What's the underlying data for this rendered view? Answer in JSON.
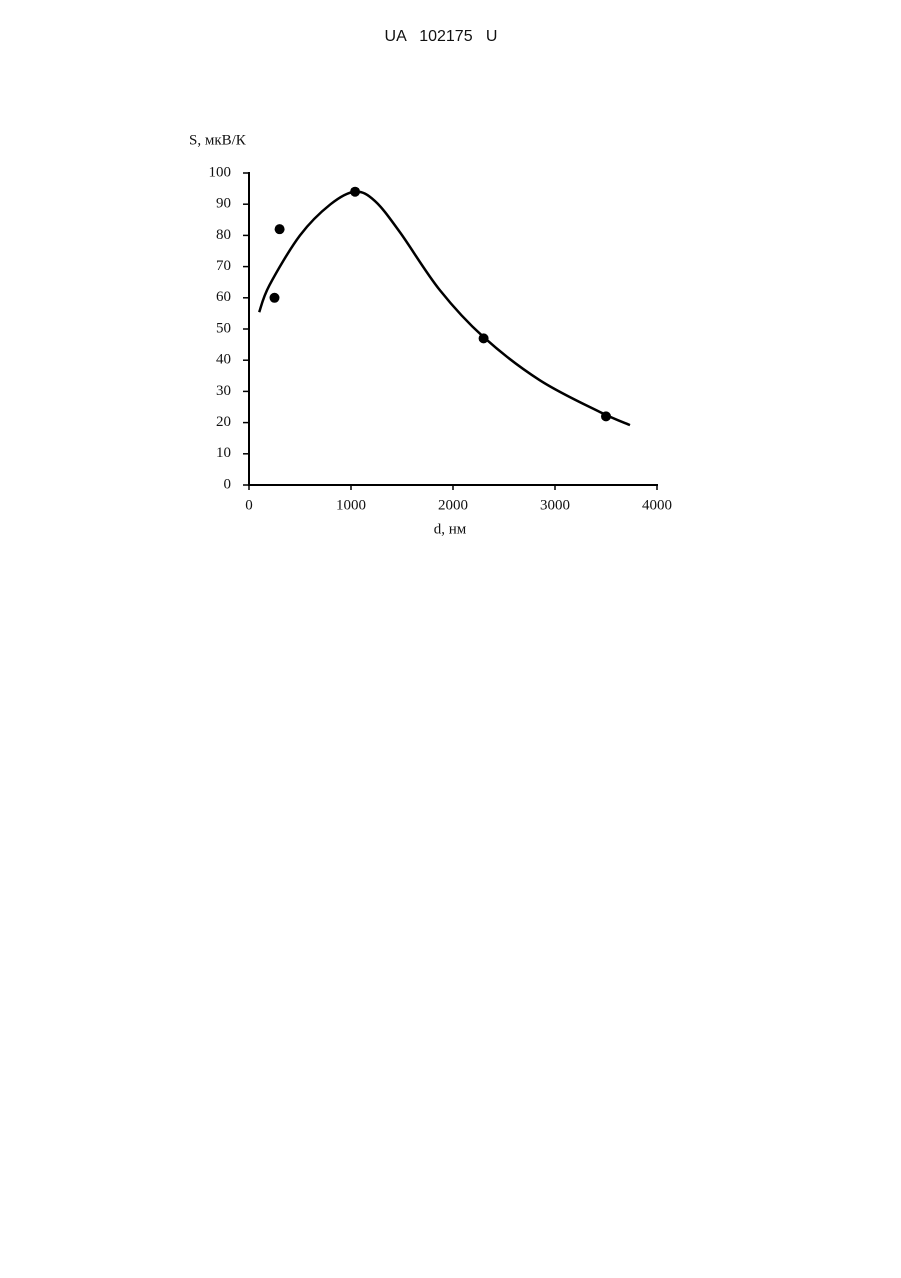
{
  "header": {
    "title": "UA   102175   U"
  },
  "chart_data": {
    "type": "scatter",
    "ylabel": "S, мкВ/К",
    "xlabel": "d, нм",
    "xlim": [
      0,
      4000
    ],
    "xticks": [
      0,
      1000,
      2000,
      3000,
      4000
    ],
    "ylim": [
      0,
      100
    ],
    "yticks": [
      0,
      10,
      20,
      30,
      40,
      50,
      60,
      70,
      80,
      90,
      100
    ],
    "series": [
      {
        "mode": "markers",
        "color": "#000000",
        "x": [
          250,
          300,
          1040,
          2300,
          3500
        ],
        "values": [
          60,
          82,
          94,
          47,
          22
        ]
      },
      {
        "mode": "line",
        "color": "#000000",
        "x": [
          100,
          200,
          500,
          800,
          1040,
          1235,
          1480,
          1870,
          2300,
          2850,
          3440,
          3735
        ],
        "values": [
          55.4,
          64,
          80,
          90,
          94,
          91,
          81,
          62.5,
          47.4,
          33.6,
          23.4,
          19.2
        ]
      }
    ]
  }
}
